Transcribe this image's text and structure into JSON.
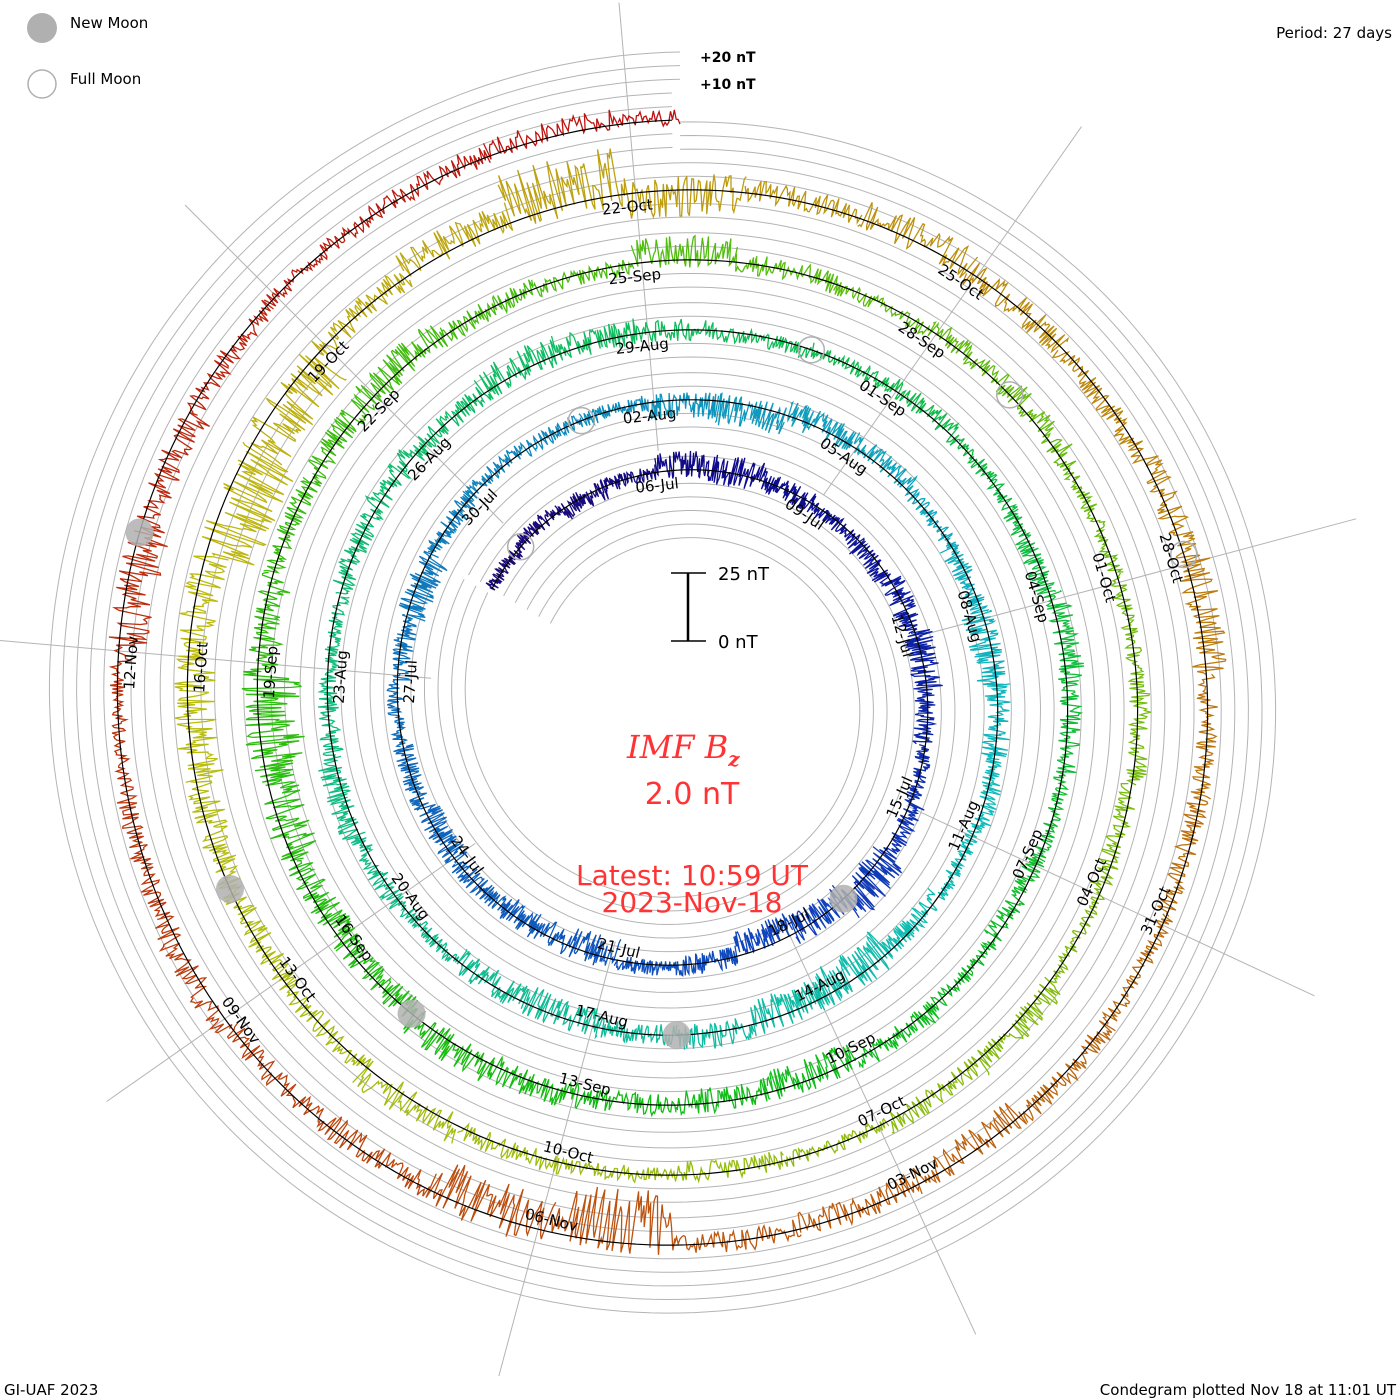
{
  "legend": {
    "new_moon": "New Moon",
    "full_moon": "Full Moon"
  },
  "period": "Period: 27 days",
  "grid_labels": {
    "plus20": "+20 nT",
    "plus10": "+10 nT"
  },
  "scale_bar": {
    "top": "25 nT",
    "bottom": "0 nT"
  },
  "title": {
    "main": "IMF B",
    "sub": "z"
  },
  "current_value": "2.0 nT",
  "latest": {
    "time": "Latest: 10:59 UT",
    "date": "2023-Nov-18"
  },
  "footer": {
    "left": "GI-UAF 2023",
    "right": "Condegram plotted Nov 18 at 11:01 UT"
  },
  "colors": {
    "grid": "#b4b4b4",
    "moon": "#b0b0b0",
    "text_accent": "#ff3333"
  },
  "chart_data": {
    "type": "line",
    "subtype": "spiral condegram",
    "title": "IMF Bz",
    "period_days": 27,
    "start_date": "2023-07-02",
    "end": "2023-11-18 10:59 UT",
    "units": "nT",
    "note": "daily mean Bz and daily variability (nT), Jul 2 - Nov 18",
    "daily_bz": [
      0,
      1,
      -1,
      0,
      2,
      1,
      0,
      -1,
      -2,
      0,
      1,
      -1,
      0,
      2,
      3,
      -1,
      -4,
      0,
      1,
      -2,
      -1,
      0,
      -1,
      0,
      1,
      -1,
      -2,
      0,
      1,
      0,
      0,
      -2,
      -3,
      1,
      2,
      0,
      -1,
      -2,
      0,
      1,
      0,
      -1,
      -3,
      -2,
      1,
      0,
      -2,
      -1,
      0,
      1,
      2,
      0,
      -1,
      0,
      1,
      0,
      2,
      1,
      0,
      -1,
      0,
      1,
      0,
      -1,
      2,
      1,
      0,
      -1,
      0,
      1,
      -2,
      -1,
      0,
      1,
      2,
      -1,
      -2,
      -3,
      -6,
      -2,
      0,
      1,
      2,
      0,
      -1,
      3,
      0,
      -1,
      1,
      2,
      0,
      0,
      1,
      -1,
      0,
      2,
      1,
      0,
      -1,
      0,
      1,
      2,
      0,
      -1,
      -2,
      -3,
      -2,
      -8,
      -5,
      0,
      3,
      6,
      -2,
      1,
      2,
      0,
      -1,
      1,
      2,
      0,
      -1,
      0,
      1,
      -2,
      -1,
      0,
      -8,
      -4,
      -1,
      0,
      2,
      1,
      0,
      -4,
      -3,
      -1,
      0,
      1,
      2,
      1
    ],
    "daily_variability": [
      3,
      3,
      4,
      3,
      5,
      6,
      4,
      3,
      4,
      5,
      6,
      4,
      3,
      4,
      8,
      6,
      5,
      4,
      3,
      6,
      5,
      4,
      5,
      4,
      3,
      4,
      6,
      4,
      3,
      3,
      3,
      5,
      6,
      5,
      4,
      3,
      4,
      6,
      5,
      4,
      3,
      4,
      8,
      7,
      5,
      4,
      6,
      5,
      3,
      4,
      5,
      4,
      3,
      4,
      5,
      4,
      6,
      5,
      4,
      3,
      3,
      4,
      3,
      4,
      5,
      4,
      3,
      4,
      3,
      4,
      6,
      5,
      4,
      5,
      6,
      5,
      6,
      8,
      12,
      6,
      4,
      5,
      6,
      4,
      3,
      6,
      4,
      3,
      4,
      5,
      3,
      3,
      4,
      4,
      3,
      5,
      4,
      3,
      4,
      3,
      4,
      6,
      4,
      5,
      6,
      8,
      7,
      12,
      10,
      5,
      6,
      12,
      8,
      4,
      6,
      5,
      4,
      5,
      7,
      4,
      4,
      3,
      4,
      6,
      5,
      4,
      12,
      10,
      5,
      4,
      5,
      4,
      3,
      8,
      6,
      4,
      3,
      4,
      4,
      3
    ],
    "grid_step_nT": 5,
    "date_labels": [
      "06-Jul",
      "09-Jul",
      "12-Jul",
      "15-Jul",
      "18-Jul",
      "21-Jul",
      "24-Jul",
      "27-Jul",
      "30-Jul",
      "02-Aug",
      "05-Aug",
      "08-Aug",
      "11-Aug",
      "14-Aug",
      "17-Aug",
      "20-Aug",
      "23-Aug",
      "26-Aug",
      "29-Aug",
      "01-Sep",
      "04-Sep",
      "07-Sep",
      "10-Sep",
      "13-Sep",
      "16-Sep",
      "19-Sep",
      "22-Sep",
      "25-Sep",
      "28-Sep",
      "01-Oct",
      "04-Oct",
      "07-Oct",
      "10-Oct",
      "13-Oct",
      "16-Oct",
      "19-Oct",
      "22-Oct",
      "25-Oct",
      "28-Oct",
      "31-Oct",
      "03-Nov",
      "06-Nov",
      "09-Nov",
      "12-Nov"
    ],
    "new_moons": [
      "17-Jul",
      "16-Aug",
      "15-Sep",
      "14-Oct",
      "13-Nov"
    ],
    "full_moons": [
      "03-Jul",
      "01-Aug",
      "31-Aug",
      "29-Sep",
      "28-Oct"
    ]
  }
}
